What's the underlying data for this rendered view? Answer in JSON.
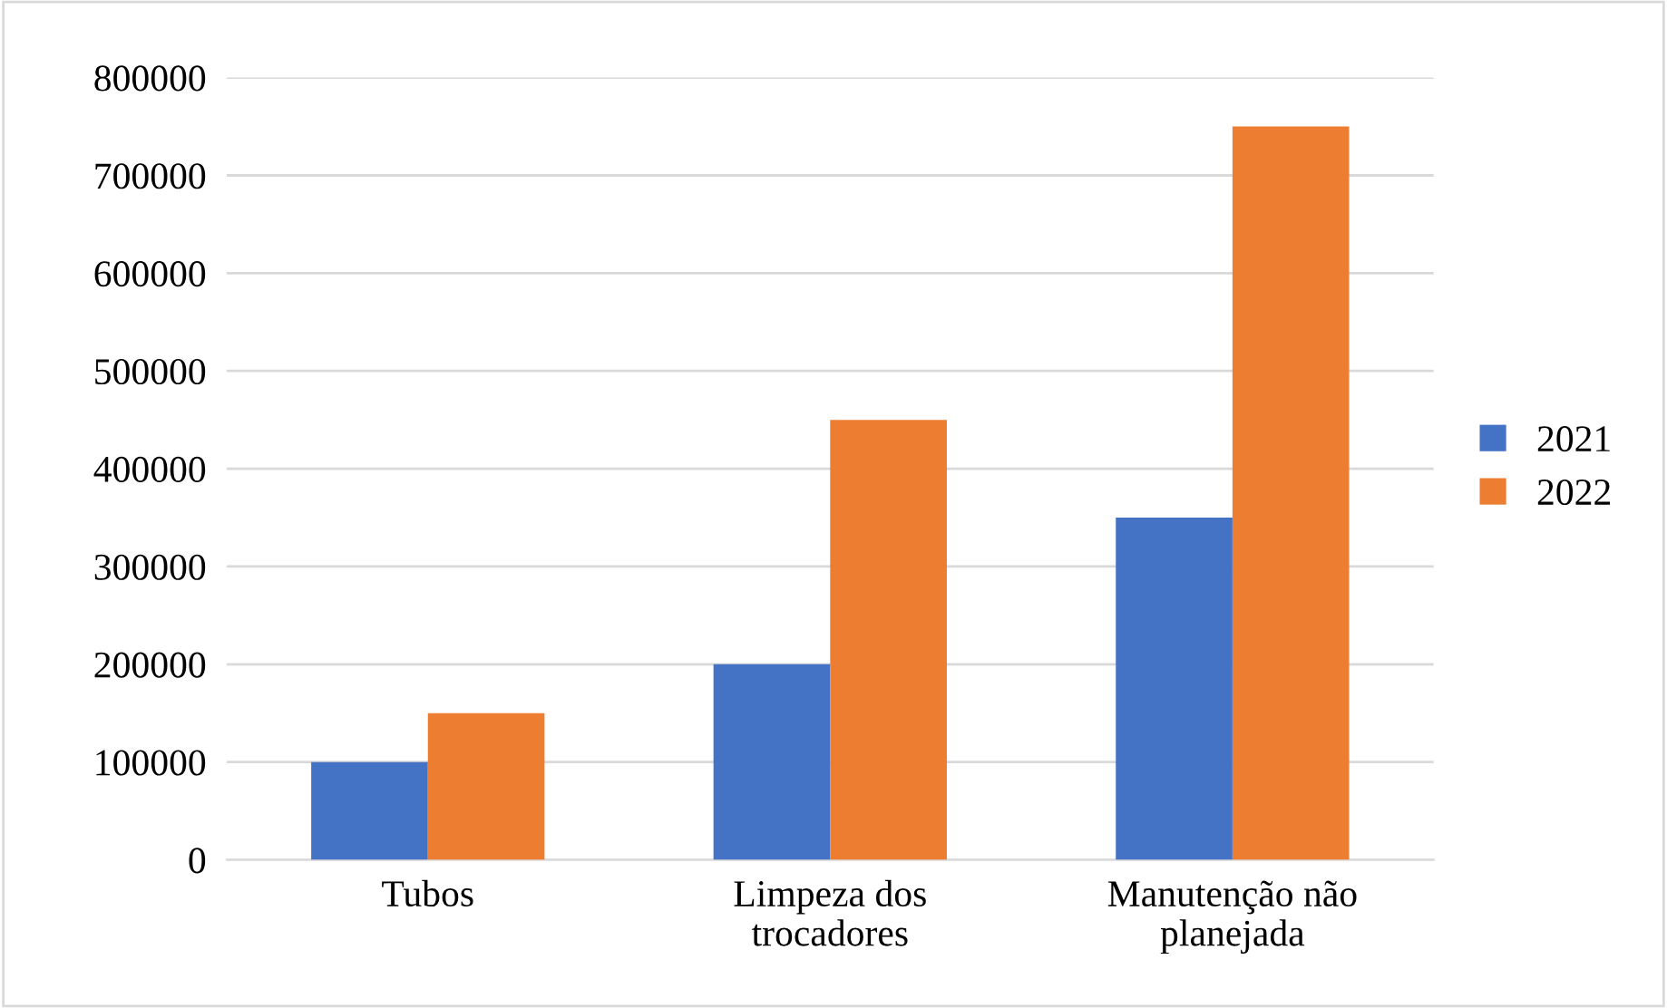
{
  "chart_data": {
    "type": "bar",
    "categories": [
      "Tubos",
      "Limpeza dos\ntrocadores",
      "Manutenção não\nplanejada"
    ],
    "series": [
      {
        "name": "2021",
        "color": "#4472c4",
        "values": [
          100000,
          200000,
          350000
        ]
      },
      {
        "name": "2022",
        "color": "#ed7d31",
        "values": [
          150000,
          450000,
          750000
        ]
      }
    ],
    "ylim": [
      0,
      800000
    ],
    "yticks": [
      0,
      100000,
      200000,
      300000,
      400000,
      500000,
      600000,
      700000,
      800000
    ],
    "grid": "y",
    "legend": "right"
  }
}
